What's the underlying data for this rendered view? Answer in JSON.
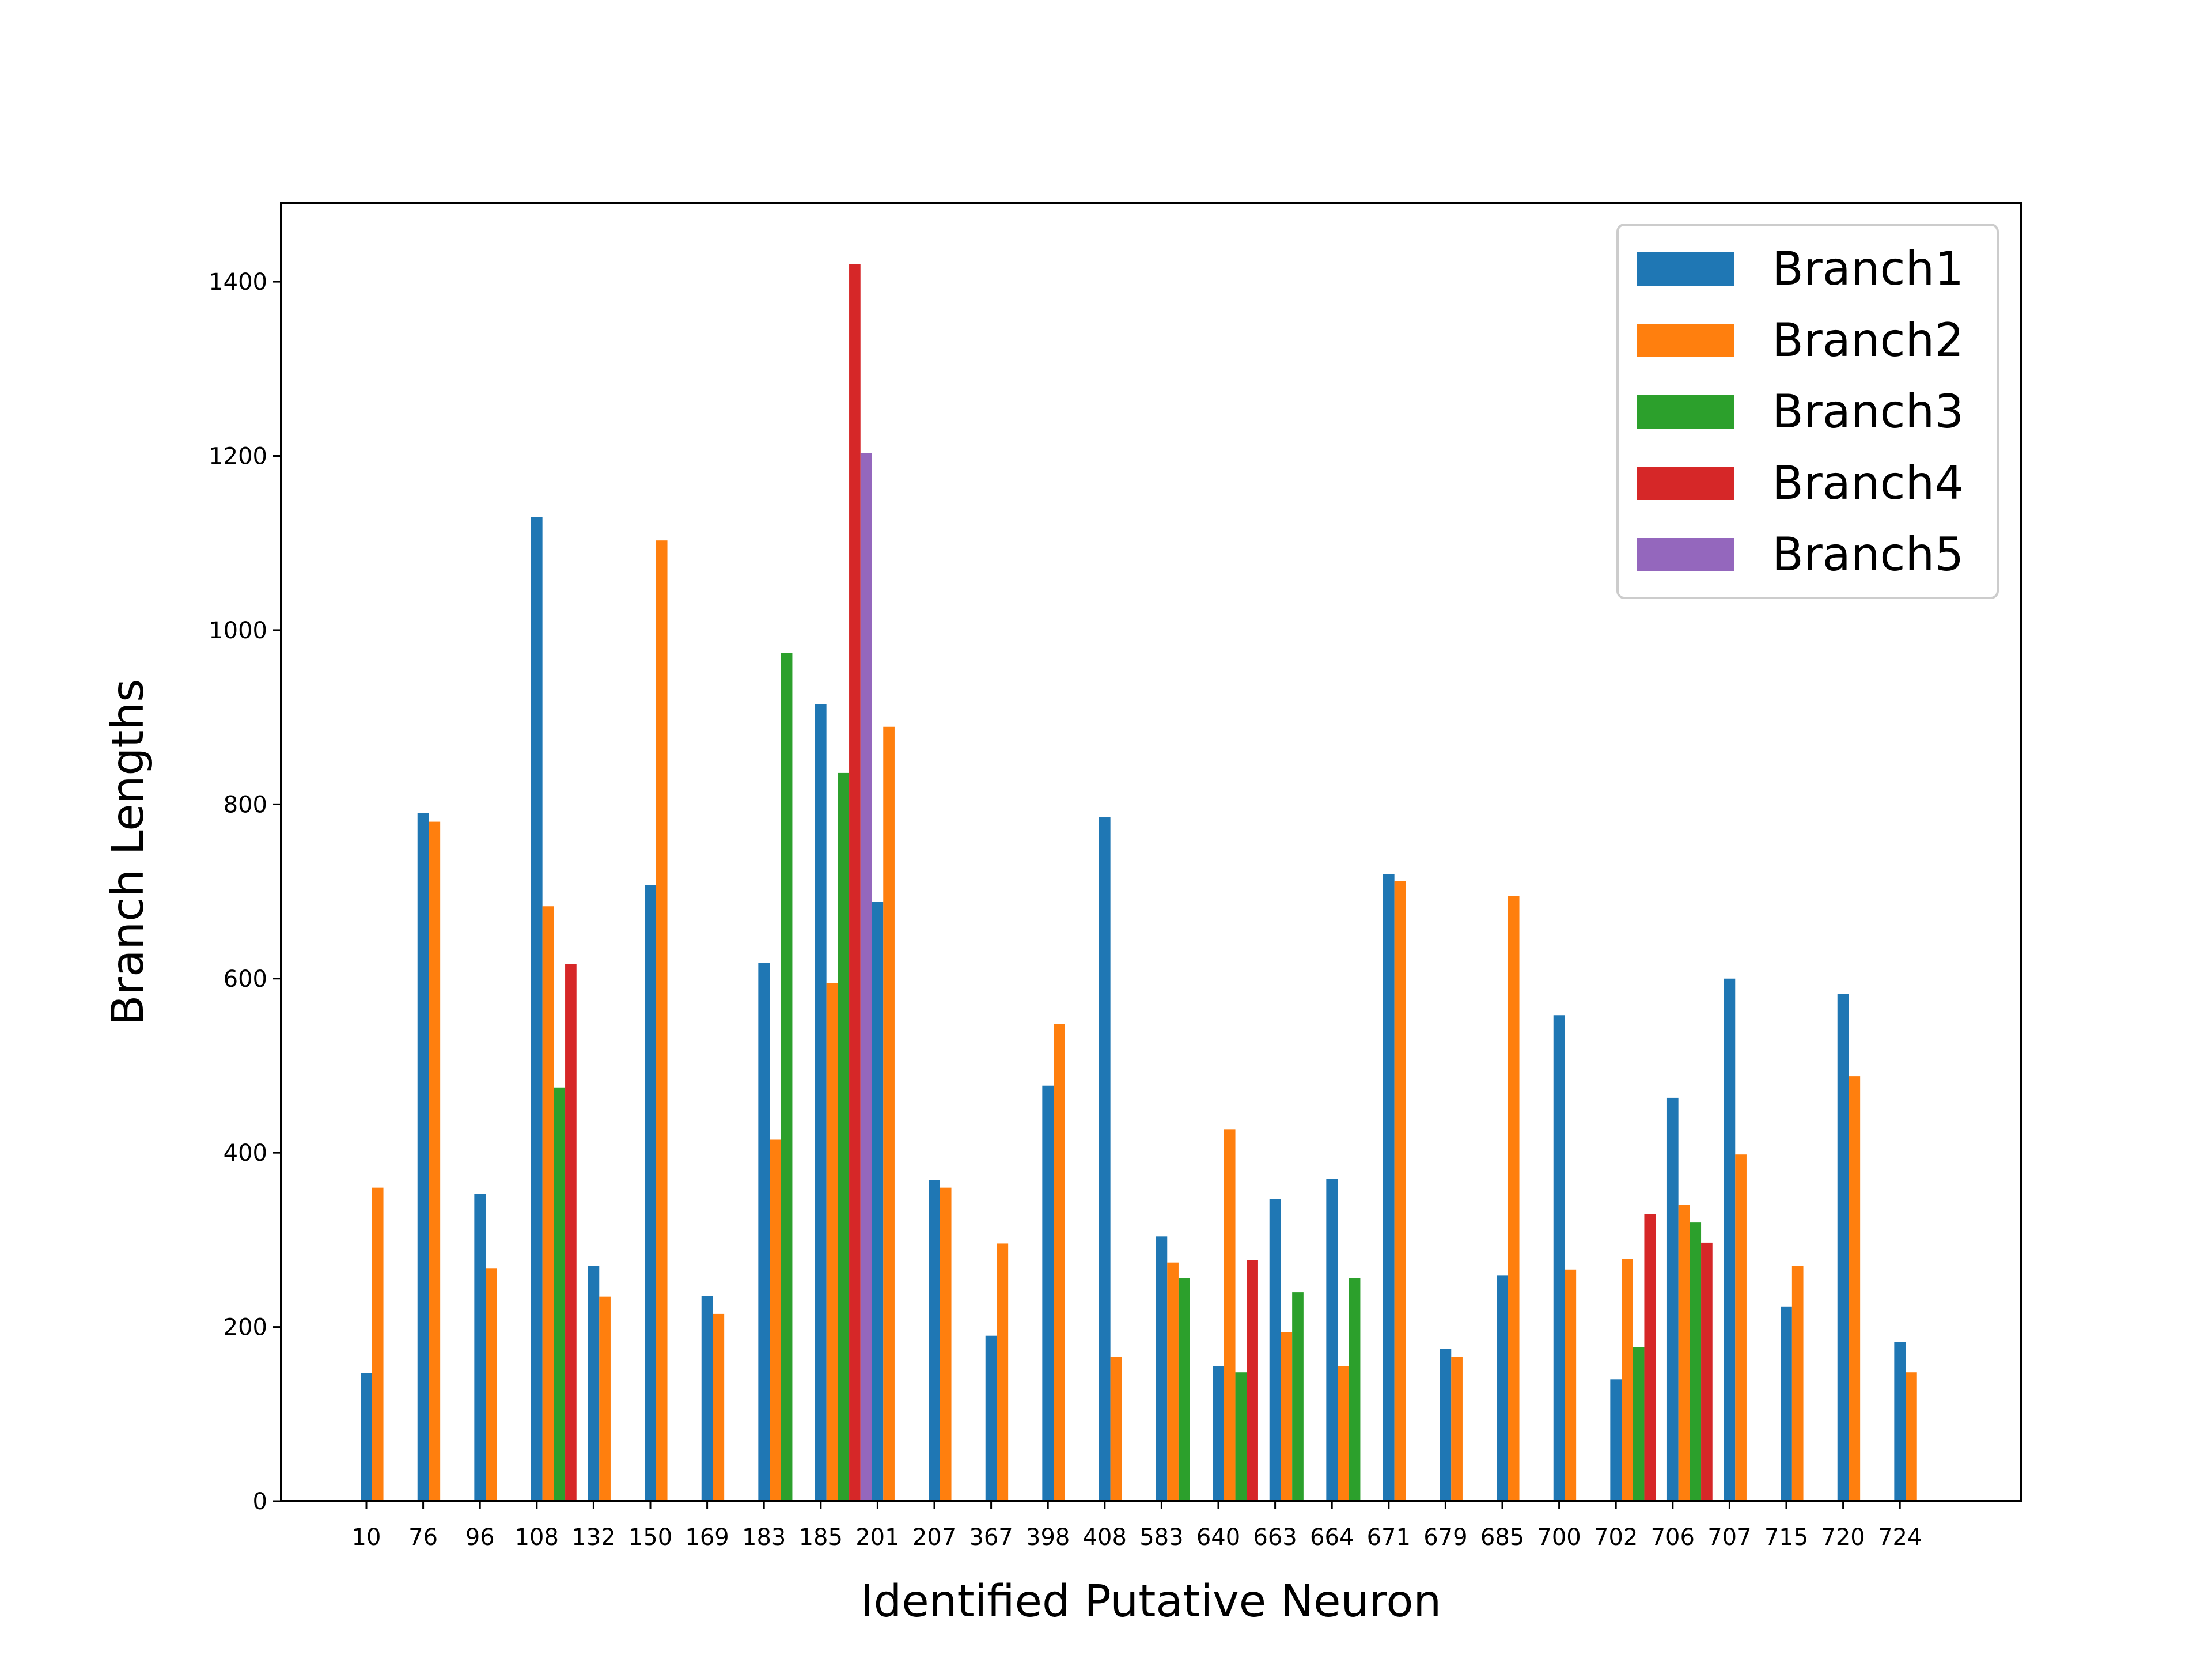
{
  "chart_data": {
    "type": "bar",
    "title": "",
    "xlabel": "Identified Putative Neuron",
    "ylabel": "Branch Lengths",
    "ylim": [
      0,
      1490
    ],
    "yticks": [
      0,
      200,
      400,
      600,
      800,
      1000,
      1200,
      1400
    ],
    "grid": false,
    "legend_position": "top-right",
    "categories": [
      "10",
      "76",
      "96",
      "108",
      "132",
      "150",
      "169",
      "183",
      "185",
      "201",
      "207",
      "367",
      "398",
      "408",
      "583",
      "640",
      "663",
      "664",
      "671",
      "679",
      "685",
      "700",
      "702",
      "706",
      "707",
      "715",
      "720",
      "724"
    ],
    "series": [
      {
        "name": "Branch1",
        "color": "#1f77b4",
        "values": [
          147,
          790,
          353,
          1130,
          270,
          707,
          236,
          618,
          915,
          688,
          369,
          190,
          477,
          785,
          304,
          155,
          347,
          370,
          720,
          175,
          259,
          558,
          140,
          463,
          600,
          223,
          582,
          183
        ]
      },
      {
        "name": "Branch2",
        "color": "#ff7f0e",
        "values": [
          360,
          780,
          267,
          683,
          235,
          1103,
          215,
          415,
          595,
          889,
          360,
          296,
          548,
          166,
          274,
          427,
          194,
          155,
          712,
          166,
          695,
          266,
          278,
          340,
          398,
          270,
          488,
          148
        ]
      },
      {
        "name": "Branch3",
        "color": "#2ca02c",
        "values": [
          null,
          null,
          null,
          475,
          null,
          null,
          null,
          974,
          836,
          null,
          null,
          null,
          null,
          null,
          256,
          148,
          240,
          256,
          null,
          null,
          null,
          null,
          177,
          320,
          null,
          null,
          null,
          null
        ]
      },
      {
        "name": "Branch4",
        "color": "#d62728",
        "values": [
          null,
          null,
          null,
          617,
          null,
          null,
          null,
          null,
          1420,
          null,
          null,
          null,
          null,
          null,
          null,
          277,
          null,
          null,
          null,
          null,
          null,
          null,
          330,
          297,
          null,
          null,
          null,
          null
        ]
      },
      {
        "name": "Branch5",
        "color": "#9467bd",
        "values": [
          null,
          null,
          null,
          null,
          null,
          null,
          null,
          null,
          1203,
          null,
          null,
          null,
          null,
          null,
          null,
          null,
          null,
          null,
          null,
          null,
          null,
          null,
          null,
          null,
          null,
          null,
          null,
          null
        ]
      }
    ]
  }
}
